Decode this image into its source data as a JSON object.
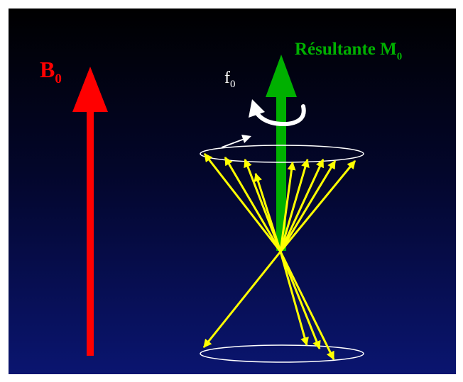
{
  "labels": {
    "b0_main": "B",
    "b0_sub": "0",
    "m0_main": "Résultante M",
    "m0_sub": "0",
    "f0_main": "f",
    "f0_sub": "0"
  },
  "colors": {
    "background_top": "#000000",
    "background_bottom": "#0a1570",
    "b0_arrow": "#ff0000",
    "m0_arrow": "#00b000",
    "spins": "#ffff00",
    "cones": "#ffffff",
    "precession_arrow": "#ffffff",
    "page_border": "#ffffff"
  }
}
